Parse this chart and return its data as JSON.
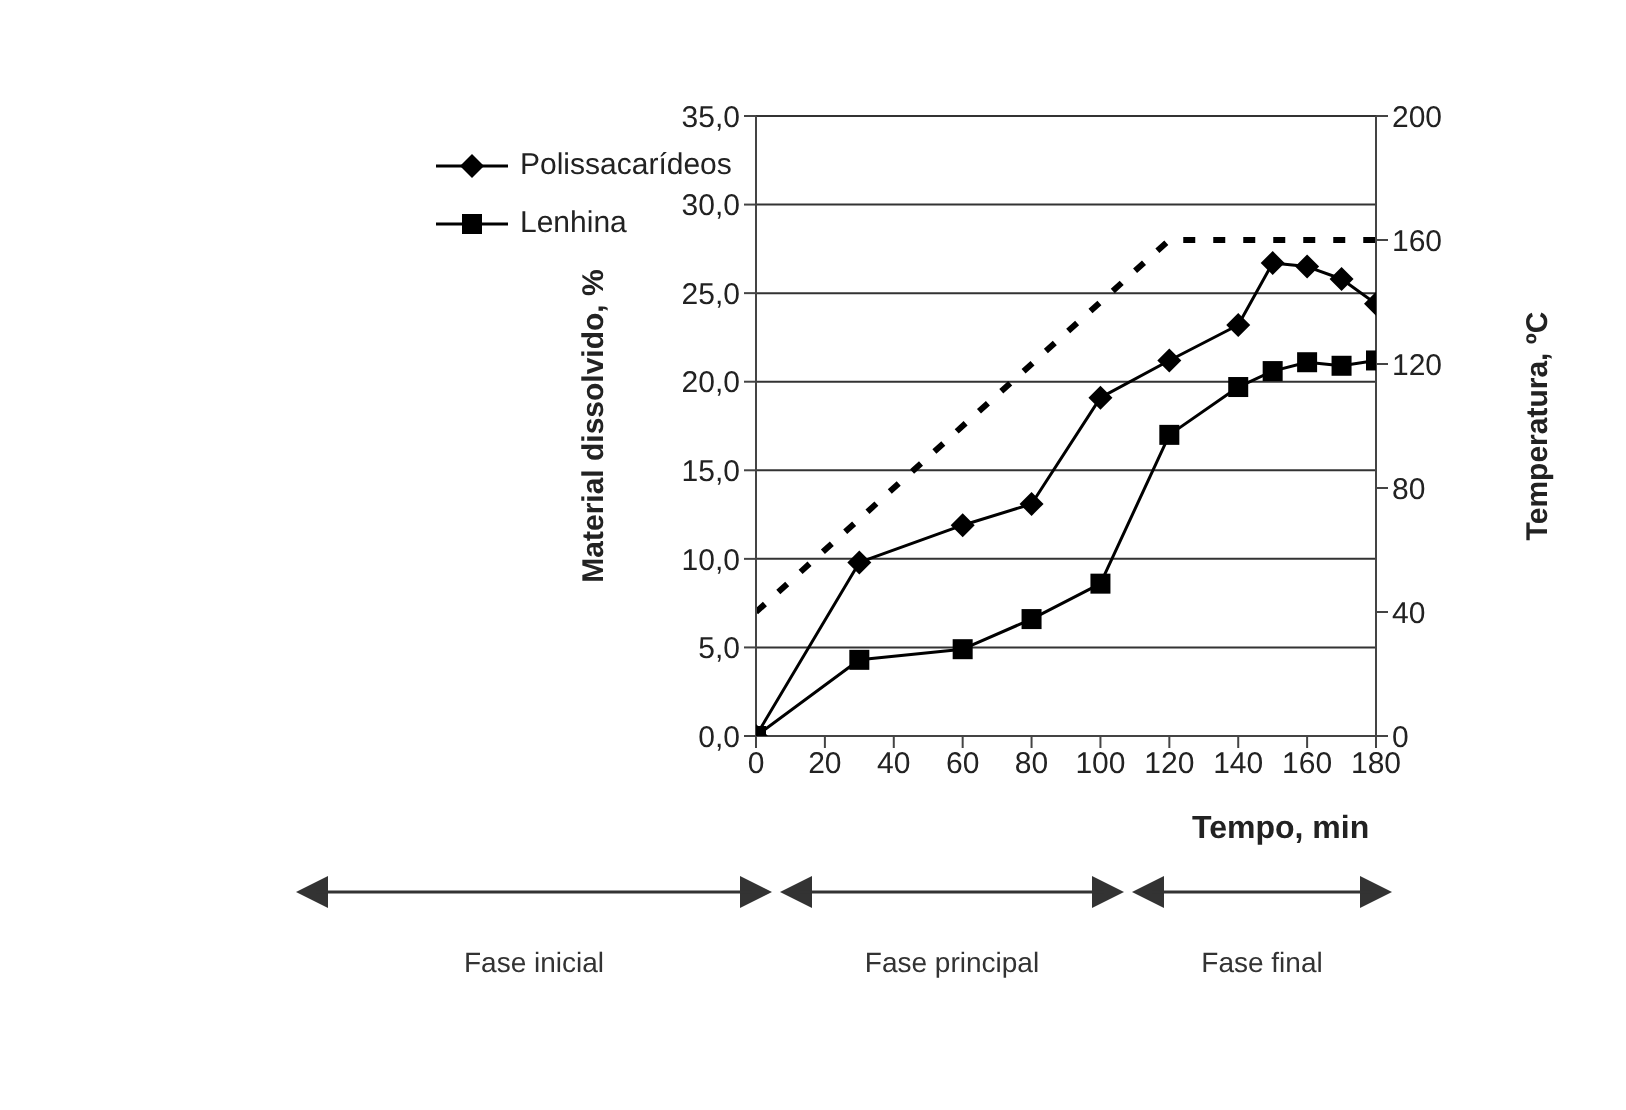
{
  "chart_data": {
    "type": "line",
    "xlabel": "Tempo, min",
    "ylabel": "Material dissolvido, %",
    "y2label": "Temperatura, ºC",
    "x": [
      0,
      30,
      60,
      80,
      100,
      120,
      140,
      150,
      160,
      170,
      180
    ],
    "series": [
      {
        "name": "Polissacarídeos",
        "color": "#000000",
        "marker": "diamond",
        "values": [
          0,
          9.8,
          11.9,
          13.1,
          19.1,
          21.2,
          23.2,
          26.7,
          26.5,
          25.8,
          24.4
        ]
      },
      {
        "name": "Lenhina",
        "color": "#000000",
        "marker": "square",
        "values": [
          0,
          4.3,
          4.9,
          6.6,
          8.6,
          17.0,
          19.7,
          20.6,
          21.1,
          20.9,
          21.2
        ]
      },
      {
        "color": "#000000",
        "marker": "none",
        "line_style": "dashed",
        "axis": "y2",
        "x": [
          0,
          120,
          180
        ],
        "values": [
          40,
          160,
          160
        ]
      }
    ],
    "xlim": [
      0,
      180
    ],
    "xticks": [
      0,
      20,
      40,
      60,
      80,
      100,
      120,
      140,
      160,
      180
    ],
    "ylim": [
      0,
      35
    ],
    "yticks": [
      {
        "value": 0,
        "label": "0,0"
      },
      {
        "value": 5,
        "label": "5,0"
      },
      {
        "value": 10,
        "label": "10,0"
      },
      {
        "value": 15,
        "label": "15,0"
      },
      {
        "value": 20,
        "label": "20,0"
      },
      {
        "value": 25,
        "label": "25,0"
      },
      {
        "value": 30,
        "label": "30,0"
      },
      {
        "value": 35,
        "label": "35,0"
      }
    ],
    "y2lim": [
      0,
      200
    ],
    "y2ticks": [
      0,
      40,
      80,
      120,
      160,
      200
    ],
    "grid": "y",
    "legend": "top left",
    "annotations": [
      "Fase inicial",
      "Fase principal",
      "Fase final"
    ]
  }
}
